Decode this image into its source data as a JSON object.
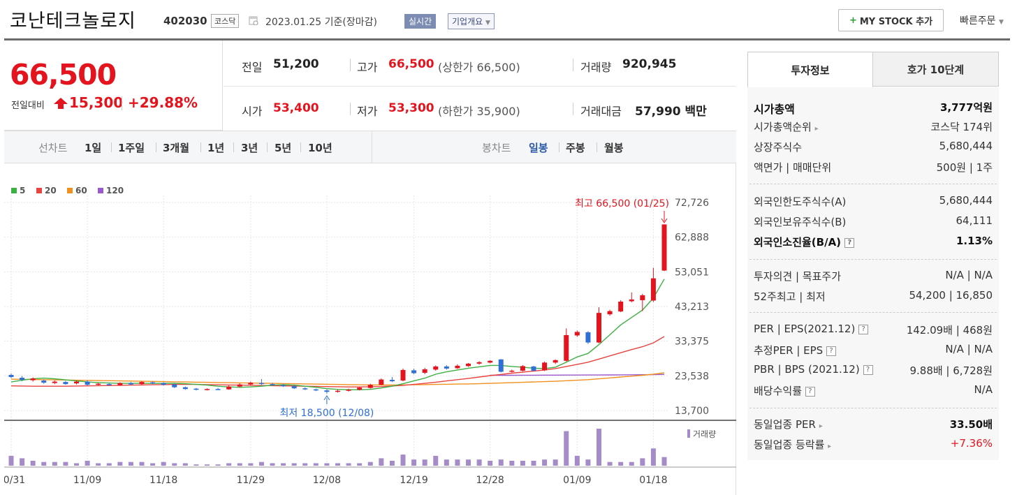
{
  "header": {
    "company_name": "코난테크놀로지",
    "code": "402030",
    "market": "코스닥",
    "date": "2023.01.25 기준(장마감)",
    "realtime_label": "실시간",
    "company_info_label": "기업개요",
    "mystock_label": "MY STOCK 추가",
    "quick_order_label": "빠른주문"
  },
  "price": {
    "current": "66,500",
    "change_label": "전일대비",
    "change": "15,300",
    "change_rate": "+29.88%"
  },
  "stats": {
    "prev_close_label": "전일",
    "prev_close": "51,200",
    "high_label": "고가",
    "high": "66,500",
    "upper_limit": "(상한가 66,500)",
    "volume_label": "거래량",
    "volume": "920,945",
    "open_label": "시가",
    "open": "53,400",
    "low_label": "저가",
    "low": "53,300",
    "lower_limit": "(하한가 35,900)",
    "amount_label": "거래대금",
    "amount": "57,990 백만"
  },
  "period_bar": {
    "line_label": "선차트",
    "line_periods": [
      "1일",
      "1주일",
      "3개월",
      "1년",
      "3년",
      "5년",
      "10년"
    ],
    "candle_label": "봉차트",
    "candle_periods": [
      "일봉",
      "주봉",
      "월봉"
    ],
    "active_candle": "일봉"
  },
  "chart_data": {
    "type": "candlestick",
    "legend": [
      {
        "name": "5",
        "color": "#3cb043"
      },
      {
        "name": "20",
        "color": "#e8433f"
      },
      {
        "name": "60",
        "color": "#f0901e"
      },
      {
        "name": "120",
        "color": "#9b59c9"
      }
    ],
    "y_ticks": [
      "72,726",
      "62,888",
      "53,051",
      "43,213",
      "33,375",
      "23,538",
      "13,700"
    ],
    "ylim": [
      13700,
      72726
    ],
    "x_ticks": [
      "10/31",
      "11/09",
      "11/18",
      "11/29",
      "12/08",
      "12/19",
      "12/28",
      "01/09",
      "01/18"
    ],
    "high_note": "최고 66,500 (01/25)",
    "low_note": "최저 18,500 (12/08)",
    "volume_label": "거래량",
    "candles": [
      {
        "o": 23800,
        "c": 23200,
        "h": 24200,
        "l": 22900,
        "v": 8
      },
      {
        "o": 23000,
        "c": 22400,
        "h": 23500,
        "l": 22000,
        "v": 6
      },
      {
        "o": 22300,
        "c": 22800,
        "h": 23100,
        "l": 21900,
        "v": 4
      },
      {
        "o": 22200,
        "c": 21600,
        "h": 22500,
        "l": 21300,
        "v": 3
      },
      {
        "o": 21500,
        "c": 21900,
        "h": 22200,
        "l": 21200,
        "v": 3
      },
      {
        "o": 21800,
        "c": 21200,
        "h": 22100,
        "l": 21000,
        "v": 3
      },
      {
        "o": 21400,
        "c": 21900,
        "h": 22200,
        "l": 21100,
        "v": 2
      },
      {
        "o": 21900,
        "c": 21000,
        "h": 22300,
        "l": 20800,
        "v": 4
      },
      {
        "o": 21000,
        "c": 21300,
        "h": 21600,
        "l": 20800,
        "v": 2
      },
      {
        "o": 21200,
        "c": 20900,
        "h": 21500,
        "l": 20700,
        "v": 2
      },
      {
        "o": 20900,
        "c": 21500,
        "h": 21700,
        "l": 20700,
        "v": 3
      },
      {
        "o": 21500,
        "c": 21100,
        "h": 21800,
        "l": 20900,
        "v": 3
      },
      {
        "o": 21200,
        "c": 21800,
        "h": 22000,
        "l": 21000,
        "v": 3
      },
      {
        "o": 21700,
        "c": 21400,
        "h": 21900,
        "l": 21200,
        "v": 2
      },
      {
        "o": 21500,
        "c": 21000,
        "h": 21700,
        "l": 20800,
        "v": 3
      },
      {
        "o": 21100,
        "c": 20300,
        "h": 21300,
        "l": 20100,
        "v": 2
      },
      {
        "o": 20300,
        "c": 19800,
        "h": 20500,
        "l": 19600,
        "v": 2
      },
      {
        "o": 19900,
        "c": 19600,
        "h": 20100,
        "l": 19400,
        "v": 1
      },
      {
        "o": 19600,
        "c": 19800,
        "h": 20000,
        "l": 19400,
        "v": 1
      },
      {
        "o": 19800,
        "c": 19700,
        "h": 20100,
        "l": 19500,
        "v": 1
      },
      {
        "o": 19700,
        "c": 20500,
        "h": 20800,
        "l": 19600,
        "v": 2
      },
      {
        "o": 20500,
        "c": 21100,
        "h": 21400,
        "l": 20300,
        "v": 2
      },
      {
        "o": 21100,
        "c": 21600,
        "h": 21900,
        "l": 20900,
        "v": 2
      },
      {
        "o": 21500,
        "c": 21200,
        "h": 22600,
        "l": 21000,
        "v": 3
      },
      {
        "o": 21200,
        "c": 20900,
        "h": 21500,
        "l": 20700,
        "v": 2
      },
      {
        "o": 20900,
        "c": 20600,
        "h": 21200,
        "l": 20400,
        "v": 2
      },
      {
        "o": 20600,
        "c": 20000,
        "h": 20900,
        "l": 19800,
        "v": 2
      },
      {
        "o": 20000,
        "c": 19700,
        "h": 20300,
        "l": 19500,
        "v": 2
      },
      {
        "o": 19700,
        "c": 19400,
        "h": 19900,
        "l": 19200,
        "v": 2
      },
      {
        "o": 19400,
        "c": 19000,
        "h": 19700,
        "l": 18500,
        "v": 2
      },
      {
        "o": 19000,
        "c": 19300,
        "h": 19600,
        "l": 18800,
        "v": 2
      },
      {
        "o": 19300,
        "c": 19600,
        "h": 19900,
        "l": 19100,
        "v": 2
      },
      {
        "o": 19600,
        "c": 20200,
        "h": 20400,
        "l": 19400,
        "v": 2
      },
      {
        "o": 20100,
        "c": 21000,
        "h": 21300,
        "l": 19900,
        "v": 3
      },
      {
        "o": 21000,
        "c": 22500,
        "h": 22800,
        "l": 20800,
        "v": 6
      },
      {
        "o": 22400,
        "c": 22000,
        "h": 23200,
        "l": 21800,
        "v": 4
      },
      {
        "o": 22200,
        "c": 25200,
        "h": 25600,
        "l": 22000,
        "v": 9
      },
      {
        "o": 25100,
        "c": 24300,
        "h": 25600,
        "l": 24000,
        "v": 5
      },
      {
        "o": 24400,
        "c": 25400,
        "h": 25800,
        "l": 24000,
        "v": 5
      },
      {
        "o": 25300,
        "c": 26200,
        "h": 26500,
        "l": 25000,
        "v": 8
      },
      {
        "o": 26200,
        "c": 25600,
        "h": 26600,
        "l": 25300,
        "v": 5
      },
      {
        "o": 25700,
        "c": 26400,
        "h": 26800,
        "l": 25500,
        "v": 5
      },
      {
        "o": 26300,
        "c": 27000,
        "h": 27200,
        "l": 26100,
        "v": 5
      },
      {
        "o": 27000,
        "c": 27400,
        "h": 27700,
        "l": 26700,
        "v": 5
      },
      {
        "o": 27300,
        "c": 27800,
        "h": 28000,
        "l": 27100,
        "v": 4
      },
      {
        "o": 28200,
        "c": 24700,
        "h": 28300,
        "l": 24500,
        "v": 5
      },
      {
        "o": 24800,
        "c": 25000,
        "h": 25300,
        "l": 24500,
        "v": 4
      },
      {
        "o": 25000,
        "c": 26300,
        "h": 26600,
        "l": 24800,
        "v": 4
      },
      {
        "o": 26200,
        "c": 25000,
        "h": 26400,
        "l": 24800,
        "v": 4
      },
      {
        "o": 25100,
        "c": 27300,
        "h": 27600,
        "l": 24900,
        "v": 5
      },
      {
        "o": 27300,
        "c": 28000,
        "h": 28200,
        "l": 26900,
        "v": 5
      },
      {
        "o": 27800,
        "c": 35100,
        "h": 37000,
        "l": 27600,
        "v": 28
      },
      {
        "o": 35000,
        "c": 36000,
        "h": 36400,
        "l": 34600,
        "v": 8
      },
      {
        "o": 35900,
        "c": 33000,
        "h": 36200,
        "l": 32600,
        "v": 5
      },
      {
        "o": 33000,
        "c": 41400,
        "h": 43000,
        "l": 32800,
        "v": 30
      },
      {
        "o": 41000,
        "c": 41900,
        "h": 42300,
        "l": 40600,
        "v": 3
      },
      {
        "o": 41800,
        "c": 44600,
        "h": 45000,
        "l": 41600,
        "v": 3
      },
      {
        "o": 44700,
        "c": 45200,
        "h": 47200,
        "l": 44400,
        "v": 3
      },
      {
        "o": 45000,
        "c": 46400,
        "h": 46800,
        "l": 41900,
        "v": 6
      },
      {
        "o": 44900,
        "c": 51200,
        "h": 54200,
        "l": 44500,
        "v": 14
      },
      {
        "o": 53400,
        "c": 66500,
        "h": 66500,
        "l": 53300,
        "v": 7
      }
    ],
    "ma5": [
      21800,
      22300,
      22700,
      22900,
      22700,
      22400,
      22100,
      21800,
      21600,
      21500,
      21400,
      21400,
      21400,
      21400,
      21400,
      21400,
      21300,
      21100,
      20900,
      20600,
      20400,
      20300,
      20400,
      20600,
      20900,
      21000,
      20900,
      20600,
      20300,
      19900,
      19700,
      19600,
      19600,
      19700,
      20100,
      20600,
      21300,
      22100,
      22900,
      24000,
      24700,
      25200,
      25700,
      26100,
      26500,
      26500,
      26200,
      26000,
      25700,
      25600,
      26000,
      27400,
      28900,
      29900,
      32400,
      35200,
      38000,
      40100,
      42200,
      45600,
      51000
    ],
    "ma20": [
      20700,
      20650,
      20600,
      20600,
      20600,
      20600,
      20650,
      20700,
      20750,
      20800,
      20850,
      20900,
      20950,
      21000,
      21050,
      21100,
      21100,
      21100,
      21050,
      21000,
      20950,
      20900,
      20850,
      20800,
      20750,
      20700,
      20650,
      20600,
      20550,
      20500,
      20450,
      20400,
      20400,
      20450,
      20500,
      20650,
      20850,
      21100,
      21400,
      21750,
      22100,
      22450,
      22800,
      23200,
      23600,
      23950,
      24300,
      24600,
      24900,
      25200,
      25600,
      26200,
      26800,
      27400,
      28300,
      29200,
      30100,
      31000,
      31800,
      32900,
      34700
    ],
    "ma60": [
      null,
      null,
      null,
      null,
      null,
      null,
      null,
      null,
      null,
      null,
      null,
      null,
      null,
      null,
      null,
      null,
      null,
      null,
      null,
      null,
      null,
      null,
      null,
      null,
      null,
      null,
      null,
      null,
      null,
      null,
      null,
      null,
      null,
      null,
      null,
      null,
      null,
      null,
      null,
      null,
      null,
      null,
      null,
      null,
      null,
      null,
      null,
      null,
      null,
      null,
      null,
      null,
      null,
      null,
      null,
      null,
      null,
      null,
      null,
      null,
      null
    ],
    "ma60_full": [
      22600,
      22550,
      22500,
      22450,
      22400,
      22350,
      22300,
      22250,
      22200,
      22150,
      22100,
      22050,
      22000,
      21950,
      21900,
      21850,
      21800,
      21750,
      21700,
      21650,
      21600,
      21550,
      21500,
      21450,
      21400,
      21350,
      21300,
      21250,
      21200,
      21150,
      21100,
      21050,
      21000,
      20950,
      20950,
      20950,
      20950,
      21000,
      21050,
      21100,
      21150,
      21200,
      21250,
      21300,
      21400,
      21500,
      21600,
      21700,
      21800,
      21900,
      22000,
      22150,
      22300,
      22450,
      22700,
      22950,
      23200,
      23450,
      23700,
      24000,
      24400
    ],
    "ma120": [
      null,
      null,
      null,
      null,
      null,
      null,
      null,
      null,
      null,
      null,
      null,
      null,
      null,
      null,
      null,
      null,
      null,
      null,
      null,
      null,
      null,
      null,
      null,
      null,
      null,
      null,
      null,
      null,
      null,
      null,
      null,
      null,
      null,
      null,
      null,
      null,
      null,
      null,
      null,
      null,
      null,
      null,
      null,
      null,
      23700,
      23700,
      23710,
      23720,
      23730,
      23740,
      23750,
      23760,
      23770,
      23780,
      23790,
      23800,
      23820,
      23840,
      23860,
      23880,
      23950
    ]
  },
  "right_panel": {
    "tab_invest": "투자정보",
    "tab_hoga": "호가 10단계",
    "market_cap_label": "시가총액",
    "market_cap": "3,777억원",
    "market_cap_rank_label": "시가총액순위",
    "market_cap_rank": "코스닥 174위",
    "listed_shares_label": "상장주식수",
    "listed_shares": "5,680,444",
    "par_value_label": "액면가 | 매매단위",
    "par_value": "500원 | 1주",
    "foreign_limit_label": "외국인한도주식수(A)",
    "foreign_limit": "5,680,444",
    "foreign_holding_label": "외국인보유주식수(B)",
    "foreign_holding": "64,111",
    "foreign_ratio_label": "외국인소진율(B/A)",
    "foreign_ratio": "1.13%",
    "opinion_label": "투자의견 | 목표주가",
    "opinion": "N/A | N/A",
    "w52_label": "52주최고 | 최저",
    "w52": "54,200 | 16,850",
    "per_label": "PER | EPS(2021.12)",
    "per": "142.09배 | 468원",
    "est_per_label": "추정PER | EPS",
    "est_per": "N/A | N/A",
    "pbr_label": "PBR | BPS (2021.12)",
    "pbr": "9.88배 | 6,728원",
    "dividend_label": "배당수익률",
    "dividend": "N/A",
    "sector_per_label": "동일업종 PER",
    "sector_per": "33.50배",
    "sector_change_label": "동일업종 등락률",
    "sector_change": "+7.36%"
  }
}
